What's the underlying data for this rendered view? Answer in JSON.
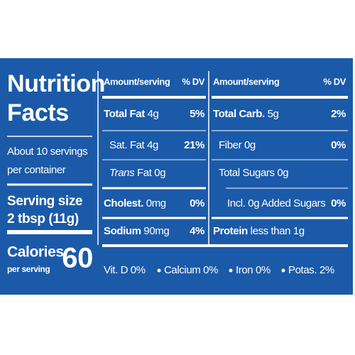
{
  "left": {
    "title_line1": "Nutrition",
    "title_line2": "Facts",
    "servings_line1": "About 10 servings",
    "servings_line2": "per container",
    "serving_size_label": "Serving size",
    "serving_size_value": "2 tbsp (11g)",
    "calories_label": "Calories",
    "calories_sub": "per serving",
    "calories_value": "60"
  },
  "middle": {
    "header_amount": "Amount/serving",
    "header_dv": "% DV",
    "rows": [
      {
        "label": "Total Fat",
        "amount": "4g",
        "dv": "5%"
      },
      {
        "label": "Sat. Fat",
        "amount": "4g",
        "dv": "21%"
      },
      {
        "italic": "Trans",
        "amount": "Fat 0g"
      },
      {
        "label": "Cholest.",
        "amount": "0mg",
        "dv": "0%"
      },
      {
        "label": "Sodium",
        "amount": "90mg",
        "dv": "4%"
      }
    ]
  },
  "right": {
    "header_amount": "Amount/serving",
    "header_dv": "% DV",
    "rows": [
      {
        "label": "Total Carb.",
        "amount": "5g",
        "dv": "2%"
      },
      {
        "amount": "Fiber 0g",
        "dv": "0%"
      },
      {
        "amount": "Total Sugars 0g"
      },
      {
        "amount": "Incl. 0g Added Sugars",
        "dv": "0%"
      },
      {
        "label": "Protein",
        "amount": "less than 1g"
      }
    ]
  },
  "vitamins": [
    "Vit. D 0%",
    "Calcium 0%",
    "Iron 0%",
    "Potas. 2%"
  ]
}
